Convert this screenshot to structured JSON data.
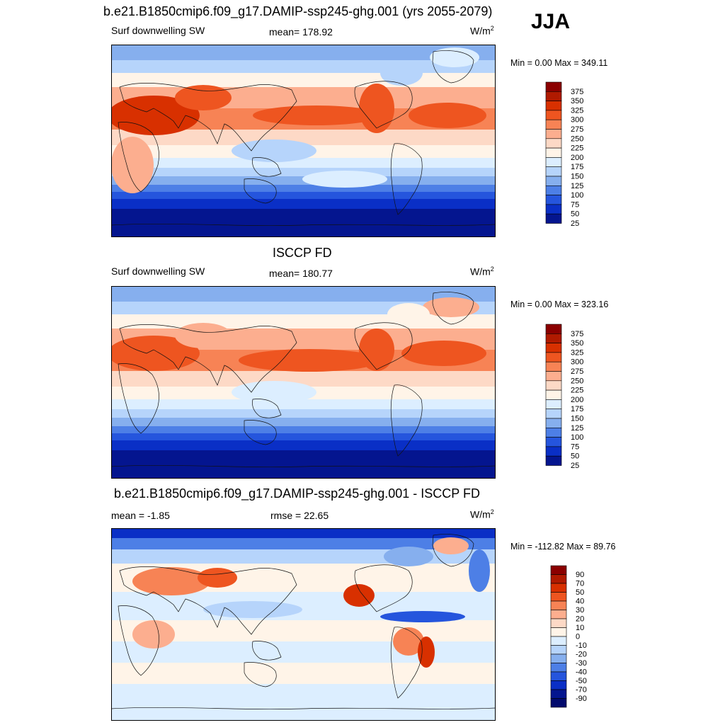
{
  "season": "JJA",
  "chart_data": [
    {
      "type": "heatmap",
      "title": "b.e21.B1850cmip6.f09_g17.DAMIP-ssp245-ghg.001 (yrs 2055-2079)",
      "left_label": "Surf downwelling SW",
      "center_label": "mean= 178.92",
      "units_base": "W/m",
      "units_sup": "2",
      "minmax": "Min =   0.00 Max = 349.11",
      "levels": [
        "375",
        "350",
        "325",
        "300",
        "275",
        "250",
        "225",
        "200",
        "175",
        "150",
        "125",
        "100",
        "75",
        "50",
        "25"
      ],
      "colors": [
        "#8b0000",
        "#b01a00",
        "#d83000",
        "#ee5520",
        "#f78355",
        "#fcae8f",
        "#fdd9c6",
        "#fff4e8",
        "#dceeff",
        "#b6d4fb",
        "#86afee",
        "#4d7fe6",
        "#2555dd",
        "#0a2fc6",
        "#04158f"
      ]
    },
    {
      "type": "heatmap",
      "title": "ISCCP FD",
      "left_label": "Surf downwelling SW",
      "center_label": "mean= 180.77",
      "units_base": "W/m",
      "units_sup": "2",
      "minmax": "Min =   0.00 Max = 323.16",
      "levels": [
        "375",
        "350",
        "325",
        "300",
        "275",
        "250",
        "225",
        "200",
        "175",
        "150",
        "125",
        "100",
        "75",
        "50",
        "25"
      ],
      "colors": [
        "#8b0000",
        "#b01a00",
        "#d83000",
        "#ee5520",
        "#f78355",
        "#fcae8f",
        "#fdd9c6",
        "#fff4e8",
        "#dceeff",
        "#b6d4fb",
        "#86afee",
        "#4d7fe6",
        "#2555dd",
        "#0a2fc6",
        "#04158f"
      ]
    },
    {
      "type": "heatmap",
      "title": "b.e21.B1850cmip6.f09_g17.DAMIP-ssp245-ghg.001 - ISCCP FD",
      "left_label": "mean =  -1.85",
      "center_label": "rmse =  22.65",
      "units_base": "W/m",
      "units_sup": "2",
      "minmax": "Min = -112.82 Max =  89.76",
      "levels": [
        "90",
        "70",
        "50",
        "40",
        "30",
        "20",
        "10",
        "0",
        "-10",
        "-20",
        "-30",
        "-40",
        "-50",
        "-70",
        "-90"
      ],
      "colors": [
        "#8b0000",
        "#b01a00",
        "#d83000",
        "#ee5520",
        "#f78355",
        "#fcae8f",
        "#fdd9c6",
        "#fff4e8",
        "#dceeff",
        "#b6d4fb",
        "#86afee",
        "#4d7fe6",
        "#2555dd",
        "#0a2fc6",
        "#04158f",
        "#020a6e"
      ]
    }
  ]
}
